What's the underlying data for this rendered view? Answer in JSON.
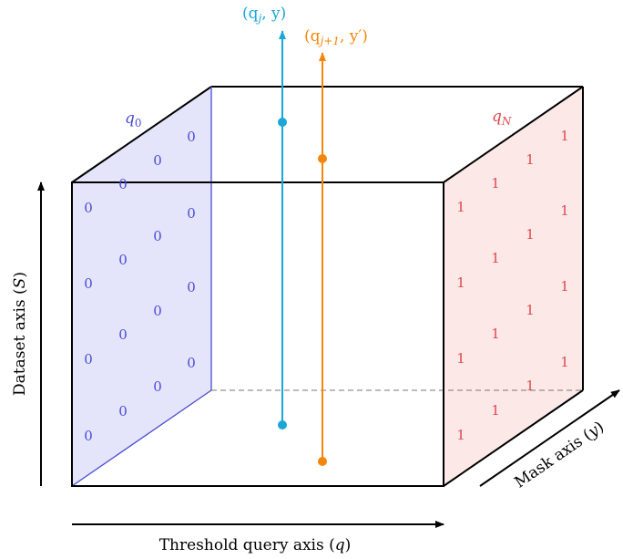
{
  "labels": {
    "q0": "q",
    "q0_sub": "0",
    "qN": "q",
    "qN_sub": "N",
    "line1": "(q",
    "line1_sub": "j",
    "line1_tail": ", y)",
    "line2": "(q",
    "line2_sub": "j+1",
    "line2_tail": ", y′)",
    "y_axis": "Dataset axis (",
    "y_axis_var": "S",
    "y_axis_close": ")",
    "x_axis": "Threshold query axis (",
    "x_axis_var": "q",
    "x_axis_close": ")",
    "z_axis": "Mask axis (",
    "z_axis_var": "y",
    "z_axis_close": ")"
  },
  "face_left_values": [
    "0",
    "0",
    "0",
    "0",
    "0",
    "0",
    "0",
    "0",
    "0",
    "0",
    "0",
    "0",
    "0",
    "0",
    "0",
    "0"
  ],
  "face_right_values": [
    "1",
    "1",
    "1",
    "1",
    "1",
    "1",
    "1",
    "1",
    "1",
    "1",
    "1",
    "1",
    "1",
    "1",
    "1",
    "1"
  ],
  "colors": {
    "left_face_fill": "#e4e4fb",
    "left_face_text": "#4b4bd6",
    "left_face_edge": "#4b4bd6",
    "right_face_fill": "#fde8e8",
    "right_face_text": "#e0474c",
    "line1": "#1aa7d8",
    "line2": "#f5860b",
    "edge": "#000000"
  }
}
